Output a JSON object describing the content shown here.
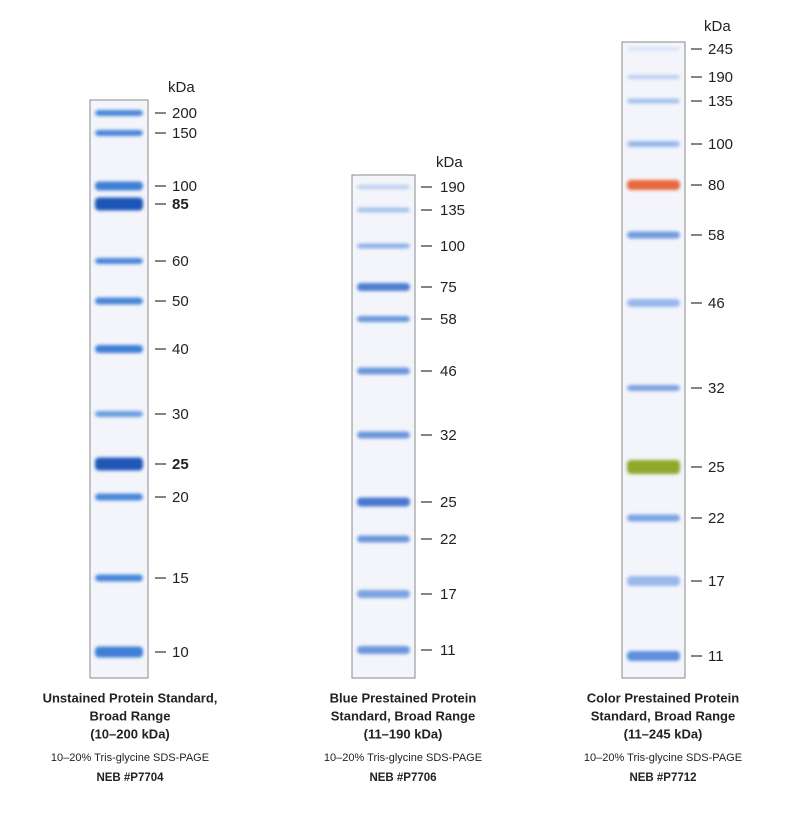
{
  "panels": [
    {
      "unit": "kDa",
      "markers": [
        {
          "label": "200"
        },
        {
          "label": "150"
        },
        {
          "label": "100"
        },
        {
          "label": "85",
          "bold": true
        },
        {
          "label": "60"
        },
        {
          "label": "50"
        },
        {
          "label": "40"
        },
        {
          "label": "30"
        },
        {
          "label": "25",
          "bold": true
        },
        {
          "label": "20"
        },
        {
          "label": "15"
        },
        {
          "label": "10"
        }
      ],
      "caption": [
        "Unstained Protein Standard,",
        "Broad Range",
        "(10–200 kDa)"
      ],
      "gel": "10–20% Tris-glycine SDS-PAGE",
      "catalog": "NEB #P7704"
    },
    {
      "unit": "kDa",
      "markers": [
        {
          "label": "190"
        },
        {
          "label": "135"
        },
        {
          "label": "100"
        },
        {
          "label": "75"
        },
        {
          "label": "58"
        },
        {
          "label": "46"
        },
        {
          "label": "32"
        },
        {
          "label": "25"
        },
        {
          "label": "22"
        },
        {
          "label": "17"
        },
        {
          "label": "11"
        }
      ],
      "caption": [
        "Blue Prestained Protein",
        "Standard, Broad Range",
        "(11–190 kDa)"
      ],
      "gel": "10–20% Tris-glycine SDS-PAGE",
      "catalog": "NEB #P7706"
    },
    {
      "unit": "kDa",
      "markers": [
        {
          "label": "245"
        },
        {
          "label": "190"
        },
        {
          "label": "135"
        },
        {
          "label": "100"
        },
        {
          "label": "80"
        },
        {
          "label": "58"
        },
        {
          "label": "46"
        },
        {
          "label": "32"
        },
        {
          "label": "25"
        },
        {
          "label": "22"
        },
        {
          "label": "17"
        },
        {
          "label": "11"
        }
      ],
      "caption": [
        "Color Prestained Protein",
        "Standard, Broad Range",
        "(11–245 kDa)"
      ],
      "gel": "10–20% Tris-glycine SDS-PAGE",
      "catalog": "NEB #P7712"
    }
  ]
}
